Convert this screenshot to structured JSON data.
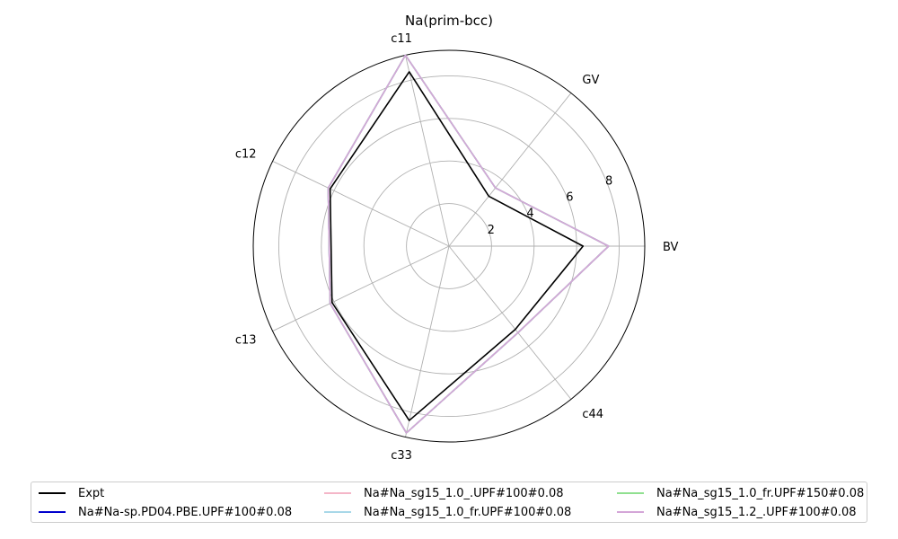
{
  "chart_data": {
    "type": "radar",
    "title": "Na(prim-bcc)",
    "axes": [
      "BV",
      "GV",
      "c11",
      "c12",
      "c13",
      "c33",
      "c44"
    ],
    "radial_ticks": [
      2,
      4,
      6,
      8
    ],
    "rlim": [
      0,
      9.2
    ],
    "grid": true,
    "legend_position": "bottom",
    "series": [
      {
        "name": "Expt",
        "color": "#000000",
        "values": [
          6.3,
          3.0,
          8.4,
          6.2,
          6.1,
          8.4,
          5.0
        ]
      },
      {
        "name": "Na#Na-sp.PD04.PBE.UPF#100#0.08",
        "color": "#0000cc",
        "values": [
          7.5,
          3.5,
          9.2,
          6.3,
          6.2,
          9.0,
          5.2
        ]
      },
      {
        "name": "Na#Na_sg15_1.0_.UPF#100#0.08",
        "color": "#f4b6c8",
        "values": [
          7.5,
          3.5,
          9.2,
          6.3,
          6.2,
          9.0,
          5.2
        ]
      },
      {
        "name": "Na#Na_sg15_1.0_fr.UPF#100#0.08",
        "color": "#a8d8e8",
        "values": [
          7.5,
          3.5,
          9.2,
          6.3,
          6.2,
          9.0,
          5.2
        ]
      },
      {
        "name": "Na#Na_sg15_1.0_fr.UPF#150#0.08",
        "color": "#90e090",
        "values": [
          7.5,
          3.5,
          9.2,
          6.3,
          6.2,
          9.0,
          5.2
        ]
      },
      {
        "name": "Na#Na_sg15_1.2_.UPF#100#0.08",
        "color": "#d4a6d8",
        "values": [
          7.5,
          3.5,
          9.2,
          6.3,
          6.2,
          9.0,
          5.2
        ]
      }
    ]
  }
}
